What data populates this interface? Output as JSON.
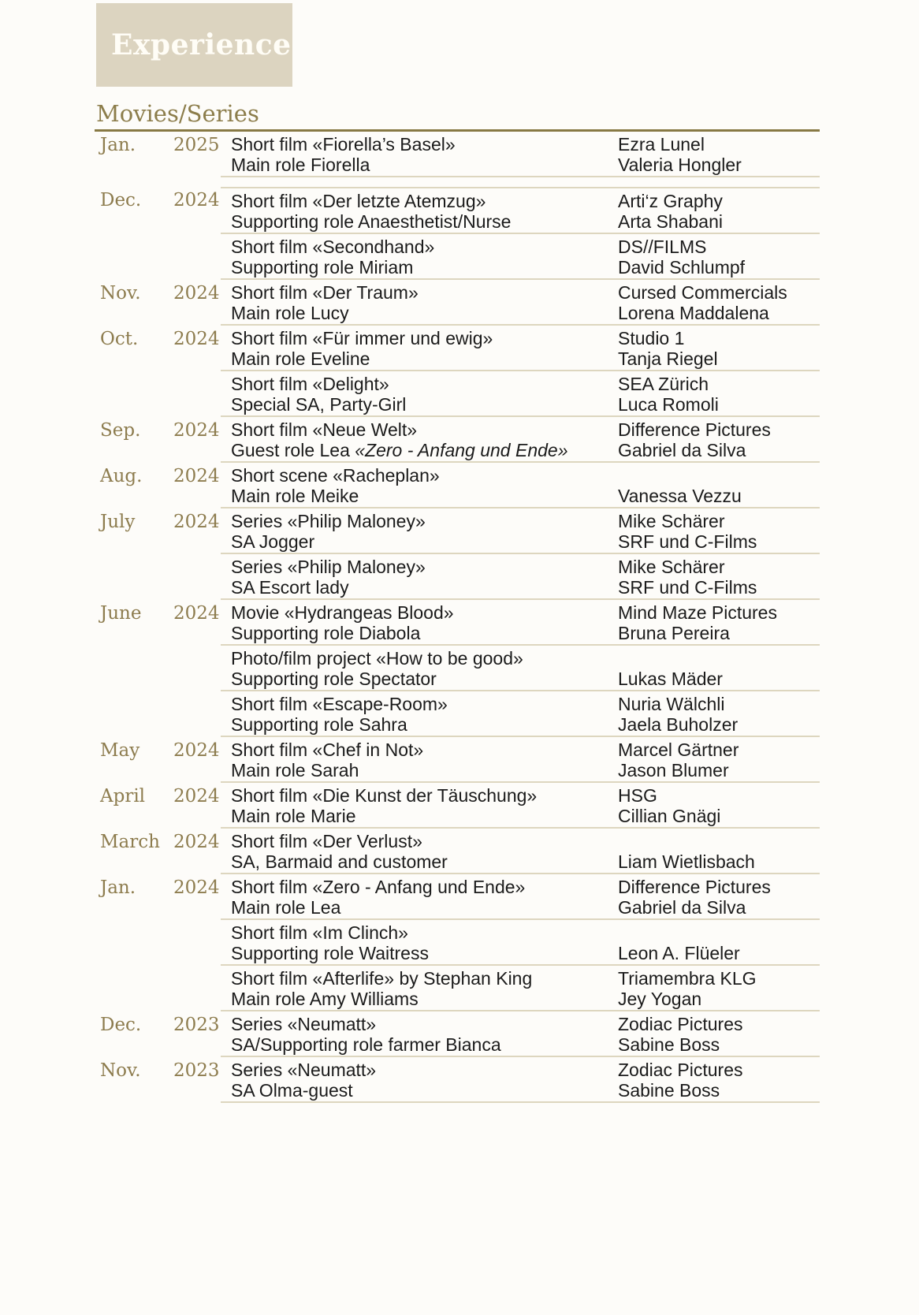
{
  "header": {
    "title": "Experience"
  },
  "section": {
    "title": "Movies/Series"
  },
  "colors": {
    "box_bg": "#dcd4c0",
    "header_text": "#fffdf6",
    "accent": "#8c7d4b",
    "accent_underline": "#877944",
    "date": "#8d7c4e",
    "separator": "#ddd6bf",
    "body_text": "#1b1b1b",
    "page_bg": "#fdfcf9"
  },
  "table": {
    "entries": [
      {
        "month": "Jan.",
        "year": "2025",
        "title": "Short film «Fiorella’s Basel»",
        "role": "Main role Fiorella",
        "role_em": "",
        "company": "Ezra Lunel",
        "person": "Valeria Hongler",
        "gap": false
      },
      {
        "month": "Dec.",
        "year": "2024",
        "title": "Short film «Der letzte Atemzug»",
        "role": "Supporting role Anaesthetist/Nurse",
        "role_em": "",
        "company": "Arti‘z Graphy",
        "person": "Arta Shabani",
        "gap": true
      },
      {
        "month": "",
        "year": "",
        "title": "Short film «Secondhand»",
        "role": "Supporting role Miriam",
        "role_em": "",
        "company": "DS//FILMS",
        "person": "David Schlumpf",
        "gap": false
      },
      {
        "month": "Nov.",
        "year": "2024",
        "title": "Short film «Der Traum»",
        "role": "Main role Lucy",
        "role_em": "",
        "company": "Cursed Commercials",
        "person": "Lorena Maddalena",
        "gap": false
      },
      {
        "month": "Oct.",
        "year": "2024",
        "title": "Short film «Für immer und ewig»",
        "role": "Main role Eveline",
        "role_em": "",
        "company": "Studio 1",
        "person": "Tanja Riegel",
        "gap": false
      },
      {
        "month": "",
        "year": "",
        "title": "Short film «Delight»",
        "role": "Special SA, Party-Girl",
        "role_em": "",
        "company": "SEA Zürich",
        "person": "Luca Romoli",
        "gap": false
      },
      {
        "month": "Sep.",
        "year": "2024",
        "title": "Short film «Neue Welt»",
        "role": "Guest role Lea ",
        "role_em": "«Zero - Anfang und Ende»",
        "company": "Difference Pictures",
        "person": "Gabriel da Silva",
        "gap": false
      },
      {
        "month": "Aug.",
        "year": "2024",
        "title": "Short scene «Racheplan»",
        "role": "Main role Meike",
        "role_em": "",
        "company": "",
        "person": "Vanessa Vezzu",
        "gap": false
      },
      {
        "month": "July",
        "year": "2024",
        "title": "Series «Philip Maloney»",
        "role": "SA Jogger",
        "role_em": "",
        "company": "Mike Schärer",
        "person": "SRF und C-Films",
        "gap": false
      },
      {
        "month": "",
        "year": "",
        "title": "Series «Philip Maloney»",
        "role": "SA Escort lady",
        "role_em": "",
        "company": "Mike Schärer",
        "person": "SRF und C-Films",
        "gap": false
      },
      {
        "month": "June",
        "year": "2024",
        "title": "Movie «Hydrangeas Blood»",
        "role": "Supporting role Diabola",
        "role_em": "",
        "company": "Mind Maze Pictures",
        "person": "Bruna Pereira",
        "gap": false
      },
      {
        "month": "",
        "year": "",
        "title": "Photo/film project «How to be good»",
        "role": "Supporting role Spectator",
        "role_em": "",
        "company": "",
        "person": "Lukas Mäder",
        "gap": false
      },
      {
        "month": "",
        "year": "",
        "title": "Short film «Escape-Room»",
        "role": "Supporting role Sahra",
        "role_em": "",
        "company": "Nuria Wälchli",
        "person": "Jaela Buholzer",
        "gap": false
      },
      {
        "month": "May",
        "year": "2024",
        "title": "Short film «Chef in Not»",
        "role": "Main role Sarah",
        "role_em": "",
        "company": "Marcel Gärtner",
        "person": "Jason Blumer",
        "gap": false
      },
      {
        "month": "April",
        "year": "2024",
        "title": "Short film «Die Kunst der Täuschung»",
        "role": "Main role Marie",
        "role_em": "",
        "company": "HSG",
        "person": "Cillian Gnägi",
        "gap": false
      },
      {
        "month": "March",
        "year": "2024",
        "title": "Short film «Der Verlust»",
        "role": "SA, Barmaid and customer",
        "role_em": "",
        "company": "",
        "person": "Liam Wietlisbach",
        "gap": false
      },
      {
        "month": "Jan.",
        "year": "2024",
        "title": "Short film «Zero - Anfang und Ende»",
        "role": "Main role Lea",
        "role_em": "",
        "company": "Difference Pictures",
        "person": "Gabriel da Silva",
        "gap": false
      },
      {
        "month": "",
        "year": "",
        "title": "Short film «Im Clinch»",
        "role": "Supporting role Waitress",
        "role_em": "",
        "company": "",
        "person": "Leon A. Flüeler",
        "gap": false
      },
      {
        "month": "",
        "year": "",
        "title": "Short film «Afterlife» by Stephan King",
        "role": "Main role Amy Williams",
        "role_em": "",
        "company": "Triamembra KLG",
        "person": "Jey Yogan",
        "gap": false
      },
      {
        "month": "Dec.",
        "year": "2023",
        "title": "Series «Neumatt»",
        "role": "SA/Supporting role farmer Bianca",
        "role_em": "",
        "company": "Zodiac Pictures",
        "person": "Sabine Boss",
        "gap": false
      },
      {
        "month": "Nov.",
        "year": "2023",
        "title": "Series «Neumatt»",
        "role": "SA Olma-guest",
        "role_em": "",
        "company": "Zodiac Pictures",
        "person": "Sabine Boss",
        "gap": false
      }
    ]
  }
}
